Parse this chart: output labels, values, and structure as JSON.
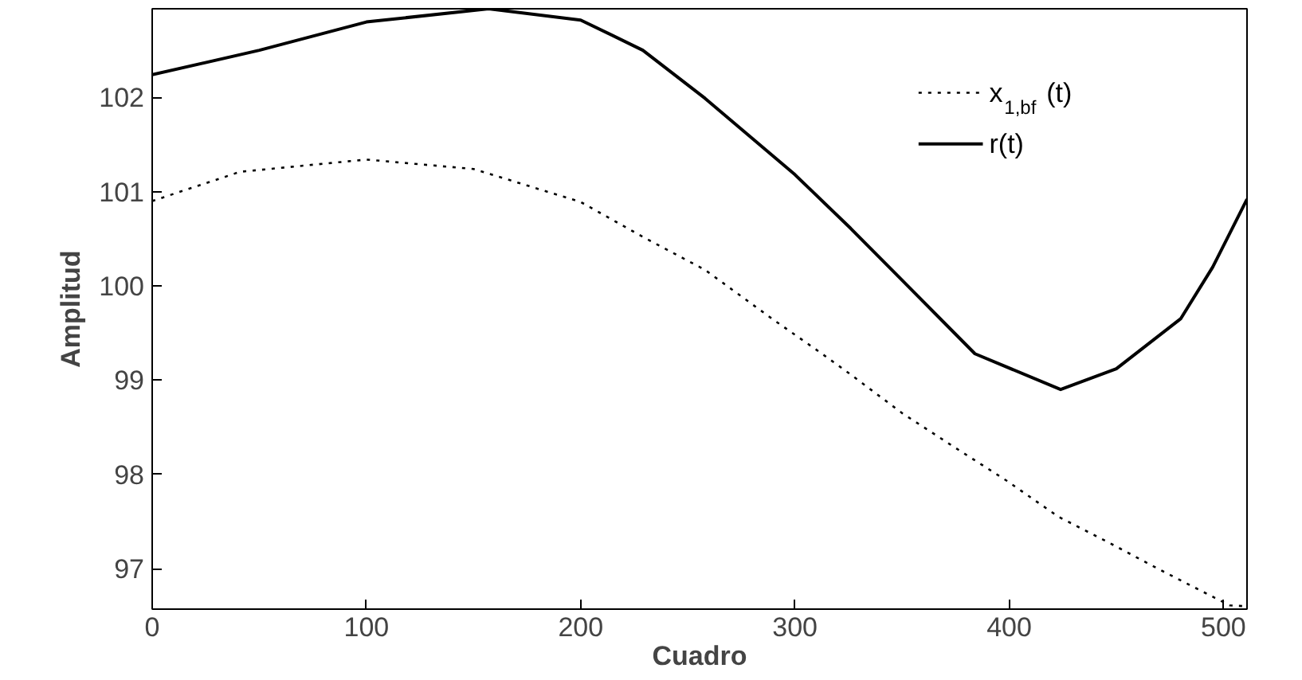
{
  "chart_data": {
    "type": "line",
    "xlabel": "Cuadro",
    "ylabel": "Amplitud",
    "xlim": [
      0,
      511
    ],
    "ylim": [
      96.57,
      102.94
    ],
    "xticks": [
      0,
      100,
      200,
      300,
      400,
      500
    ],
    "yticks": [
      97,
      98,
      99,
      100,
      101,
      102
    ],
    "grid": false,
    "legend": "top right",
    "series": [
      {
        "name": "x$_{1,bf}$(t)",
        "color": "#000000",
        "line_style": "dotted",
        "x": [
          0,
          41,
          100,
          150,
          200,
          229,
          258,
          290,
          312,
          326,
          350,
          375,
          399,
          423,
          447,
          471,
          496,
          503,
          511
        ],
        "values": [
          100.9,
          101.21,
          101.34,
          101.24,
          100.89,
          100.52,
          100.17,
          99.64,
          99.29,
          99.06,
          98.65,
          98.28,
          97.93,
          97.55,
          97.27,
          96.98,
          96.69,
          96.61,
          96.6
        ]
      },
      {
        "name": "r(t)",
        "color": "#000000",
        "line_style": "solid",
        "x": [
          0,
          50,
          100,
          157,
          200,
          229,
          258,
          300,
          326,
          350,
          384,
          424,
          450,
          480,
          495,
          511
        ],
        "values": [
          102.24,
          102.5,
          102.8,
          102.94,
          102.82,
          102.5,
          101.99,
          101.18,
          100.61,
          100.06,
          99.28,
          98.9,
          99.12,
          99.65,
          100.2,
          100.92
        ]
      }
    ]
  }
}
